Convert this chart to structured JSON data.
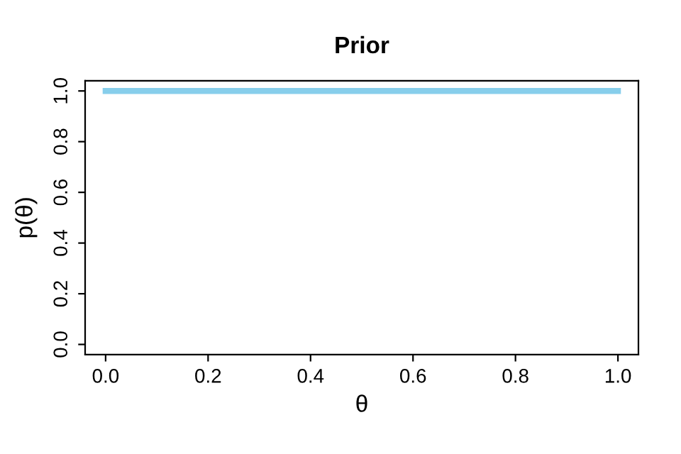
{
  "chart_data": {
    "type": "line",
    "title": "Prior",
    "xlabel": "θ",
    "ylabel": "p(θ)",
    "x": [
      0,
      1
    ],
    "series": [
      {
        "color": "#87ceeb",
        "values": [
          1,
          1
        ]
      }
    ],
    "xlim": [
      -0.04,
      1.04
    ],
    "ylim": [
      -0.04,
      1.04
    ],
    "xticks": [
      {
        "value": 0,
        "label": "0.0"
      },
      {
        "value": 0.2,
        "label": "0.2"
      },
      {
        "value": 0.4,
        "label": "0.4"
      },
      {
        "value": 0.6,
        "label": "0.6"
      },
      {
        "value": 0.8,
        "label": "0.8"
      },
      {
        "value": 1,
        "label": "1.0"
      }
    ],
    "yticks": [
      {
        "value": 0,
        "label": "0.0"
      },
      {
        "value": 0.2,
        "label": "0.2"
      },
      {
        "value": 0.4,
        "label": "0.4"
      },
      {
        "value": 0.6,
        "label": "0.6"
      },
      {
        "value": 0.8,
        "label": "0.8"
      },
      {
        "value": 1,
        "label": "1.0"
      }
    ],
    "grid": false,
    "legend": false,
    "marker": "none",
    "line_style": "solid"
  }
}
